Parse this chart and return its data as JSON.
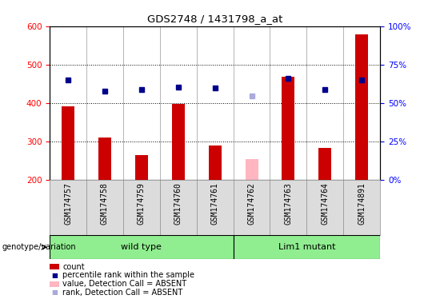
{
  "title": "GDS2748 / 1431798_a_at",
  "samples": [
    "GSM174757",
    "GSM174758",
    "GSM174759",
    "GSM174760",
    "GSM174761",
    "GSM174762",
    "GSM174763",
    "GSM174764",
    "GSM174891"
  ],
  "counts": [
    390,
    310,
    263,
    397,
    288,
    null,
    468,
    283,
    578
  ],
  "counts_absent": [
    null,
    null,
    null,
    null,
    null,
    253,
    null,
    null,
    null
  ],
  "percentile_ranks": [
    460,
    430,
    435,
    440,
    438,
    null,
    463,
    435,
    460
  ],
  "percentile_ranks_absent": [
    null,
    null,
    null,
    null,
    null,
    418,
    null,
    null,
    null
  ],
  "y_min": 200,
  "y_max": 600,
  "y_ticks": [
    200,
    300,
    400,
    500,
    600
  ],
  "right_y_ticks_pct": [
    0,
    25,
    50,
    75,
    100
  ],
  "right_y_tick_labels": [
    "0%",
    "25%",
    "50%",
    "75%",
    "100%"
  ],
  "wild_type_count": 5,
  "lim1_mutant_count": 4,
  "group_labels": [
    "wild type",
    "Lim1 mutant"
  ],
  "group_color": "#90EE90",
  "bar_color": "#CC0000",
  "bar_absent_color": "#FFB6C1",
  "dot_color": "#00008B",
  "dot_absent_color": "#AAAADD",
  "xtick_bg_color": "#DCDCDC",
  "plot_bg_color": "#FFFFFF",
  "bar_width": 0.35,
  "legend_entries": [
    {
      "color": "#CC0000",
      "label": "count",
      "type": "bar"
    },
    {
      "color": "#00008B",
      "label": "percentile rank within the sample",
      "type": "dot"
    },
    {
      "color": "#FFB6C1",
      "label": "value, Detection Call = ABSENT",
      "type": "bar"
    },
    {
      "color": "#AAAADD",
      "label": "rank, Detection Call = ABSENT",
      "type": "dot"
    }
  ]
}
